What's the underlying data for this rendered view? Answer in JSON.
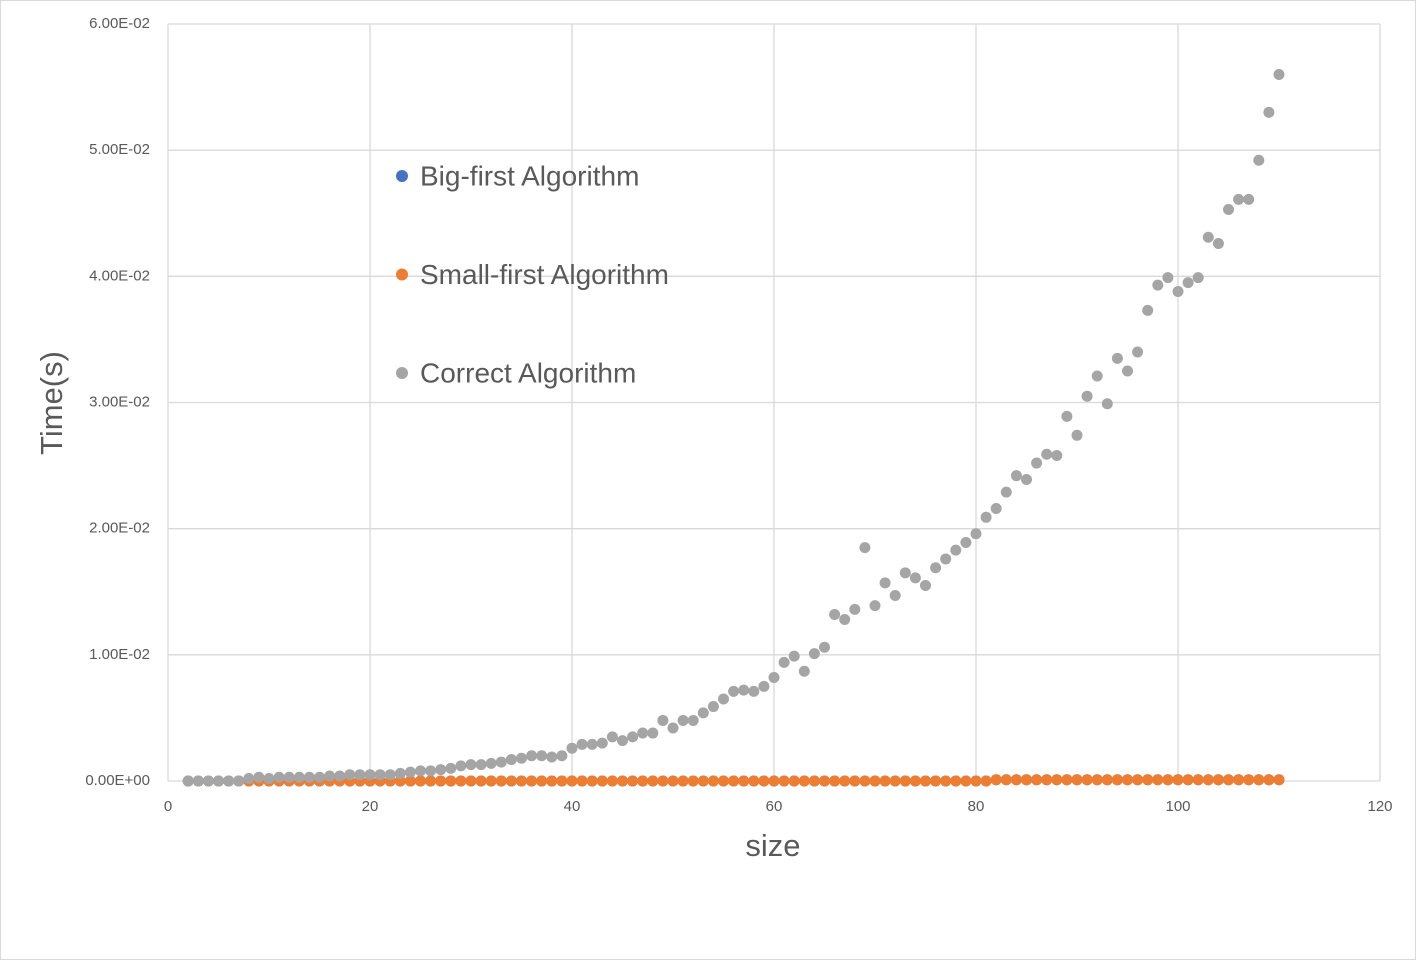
{
  "chart_data": {
    "type": "scatter",
    "y_label": "Time(s)",
    "x_label": "size",
    "xlim": [
      0,
      120
    ],
    "xticks": [
      0,
      20,
      40,
      60,
      80,
      100,
      120
    ],
    "ylim": [
      0,
      0.06
    ],
    "yticks": [
      {
        "value": 0,
        "label": "0.00E+00"
      },
      {
        "value": 0.01,
        "label": "1.00E-02"
      },
      {
        "value": 0.02,
        "label": "2.00E-02"
      },
      {
        "value": 0.03,
        "label": "3.00E-02"
      },
      {
        "value": 0.04,
        "label": "4.00E-02"
      },
      {
        "value": 0.05,
        "label": "5.00E-02"
      },
      {
        "value": 0.06,
        "label": "6.00E-02"
      }
    ],
    "grid": true,
    "legend": "upper-left",
    "x": [
      2,
      3,
      4,
      5,
      6,
      7,
      8,
      9,
      10,
      11,
      12,
      13,
      14,
      15,
      16,
      17,
      18,
      19,
      20,
      21,
      22,
      23,
      24,
      25,
      26,
      27,
      28,
      29,
      30,
      31,
      32,
      33,
      34,
      35,
      36,
      37,
      38,
      39,
      40,
      41,
      42,
      43,
      44,
      45,
      46,
      47,
      48,
      49,
      50,
      51,
      52,
      53,
      54,
      55,
      56,
      57,
      58,
      59,
      60,
      61,
      62,
      63,
      64,
      65,
      66,
      67,
      68,
      69,
      70,
      71,
      72,
      73,
      74,
      75,
      76,
      77,
      78,
      79,
      80,
      81,
      82,
      83,
      84,
      85,
      86,
      87,
      88,
      89,
      90,
      91,
      92,
      93,
      94,
      95,
      96,
      97,
      98,
      99,
      100,
      101,
      102,
      103,
      104,
      105,
      106,
      107,
      108,
      109,
      110
    ],
    "series": [
      {
        "name": "Big-first Algorithm",
        "color": "#4472c4",
        "values": [
          0,
          0,
          0,
          0,
          0,
          0,
          0,
          0,
          0,
          0,
          0,
          0,
          0,
          0,
          0,
          0,
          0,
          0,
          0,
          0,
          0,
          0,
          0,
          0,
          0,
          0,
          0,
          0,
          0,
          0,
          0,
          0,
          0,
          0,
          0,
          0,
          0,
          0,
          0,
          0,
          0,
          0,
          0,
          0,
          0,
          0,
          0,
          0,
          0,
          0,
          0,
          0,
          0,
          0,
          0,
          0,
          0,
          0,
          0,
          0,
          0,
          0,
          0,
          0,
          0,
          0,
          0,
          0,
          0,
          0,
          0,
          0,
          0,
          0,
          0,
          0,
          0,
          0,
          0,
          0,
          0.0001,
          0.0001,
          0.0001,
          0.0001,
          0.0001,
          0.0001,
          0.0001,
          0.0001,
          0.0001,
          0.0001,
          0.0001,
          0.0001,
          0.0001,
          0.0001,
          0.0001,
          0.0001,
          0.0001,
          0.0001,
          0.0001,
          0.0001,
          0.0001,
          0.0001,
          0.0001,
          0.0001,
          0.0001,
          0.0001,
          0.0001,
          0.0001,
          0.0001
        ]
      },
      {
        "name": "Small-first Algorithm",
        "color": "#ed7d31",
        "values": [
          0,
          0,
          0,
          0,
          0,
          0,
          0,
          0,
          0,
          0,
          0,
          0,
          0,
          0,
          0,
          0,
          0,
          0,
          0,
          0,
          0,
          0,
          0,
          0,
          0,
          0,
          0,
          0,
          0,
          0,
          0,
          0,
          0,
          0,
          0,
          0,
          0,
          0,
          0,
          0,
          0,
          0,
          0,
          0,
          0,
          0,
          0,
          0,
          0,
          0,
          0,
          0,
          0,
          0,
          0,
          0,
          0,
          0,
          0,
          0,
          0,
          0,
          0,
          0,
          0,
          0,
          0,
          0,
          0,
          0,
          0,
          0,
          0,
          0,
          0,
          0,
          0,
          0,
          0,
          0,
          0.0001,
          0.0001,
          0.0001,
          0.0001,
          0.0001,
          0.0001,
          0.0001,
          0.0001,
          0.0001,
          0.0001,
          0.0001,
          0.0001,
          0.0001,
          0.0001,
          0.0001,
          0.0001,
          0.0001,
          0.0001,
          0.0001,
          0.0001,
          0.0001,
          0.0001,
          0.0001,
          0.0001,
          0.0001,
          0.0001,
          0.0001,
          0.0001,
          0.0001
        ]
      },
      {
        "name": "Correct Algorithm",
        "color": "#a5a5a5",
        "values": [
          0,
          0,
          0,
          0,
          0,
          0,
          0.0002,
          0.0003,
          0.0002,
          0.0003,
          0.0003,
          0.0003,
          0.0003,
          0.0003,
          0.0004,
          0.0004,
          0.0005,
          0.0005,
          0.0005,
          0.0005,
          0.0005,
          0.0006,
          0.0007,
          0.0008,
          0.0008,
          0.0009,
          0.001,
          0.0012,
          0.0013,
          0.0013,
          0.0014,
          0.0015,
          0.0017,
          0.0018,
          0.002,
          0.002,
          0.0019,
          0.002,
          0.0026,
          0.0029,
          0.0029,
          0.003,
          0.0035,
          0.0032,
          0.0035,
          0.0038,
          0.0038,
          0.0048,
          0.0042,
          0.0048,
          0.0048,
          0.0054,
          0.0059,
          0.0065,
          0.0071,
          0.0072,
          0.0071,
          0.0075,
          0.0082,
          0.0094,
          0.0099,
          0.0087,
          0.0101,
          0.0106,
          0.0132,
          0.0128,
          0.0136,
          0.0185,
          0.0139,
          0.0157,
          0.0147,
          0.0165,
          0.0161,
          0.0155,
          0.0169,
          0.0176,
          0.0183,
          0.0189,
          0.0196,
          0.0209,
          0.0216,
          0.0229,
          0.0242,
          0.0239,
          0.0252,
          0.0259,
          0.0258,
          0.0289,
          0.0274,
          0.0305,
          0.0321,
          0.0299,
          0.0335,
          0.0325,
          0.034,
          0.0373,
          0.0393,
          0.0399,
          0.0388,
          0.0395,
          0.0399,
          0.0431,
          0.0426,
          0.0453,
          0.0461,
          0.0461,
          0.0492,
          0.053,
          0.056
        ]
      }
    ]
  }
}
